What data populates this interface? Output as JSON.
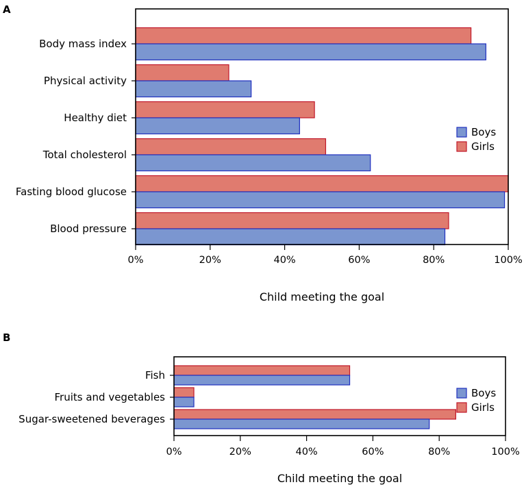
{
  "chart_data": [
    {
      "panel": "A",
      "type": "bar",
      "orientation": "horizontal",
      "categories": [
        "Body mass index",
        "Physical activity",
        "Healthy diet",
        "Total cholesterol",
        "Fasting blood glucose",
        "Blood pressure"
      ],
      "series": [
        {
          "name": "Boys",
          "color": "#7b96d0",
          "stroke": "#1f2fbf",
          "values": [
            94,
            31,
            44,
            63,
            99,
            83
          ]
        },
        {
          "name": "Girls",
          "color": "#e07b6f",
          "stroke": "#c0182a",
          "values": [
            90,
            25,
            48,
            51,
            100,
            84
          ]
        }
      ],
      "xlabel": "Child meeting the goal",
      "ylabel": "",
      "xlim": [
        0,
        100
      ],
      "ticks": [
        "0%",
        "20%",
        "40%",
        "60%",
        "80%",
        "100%"
      ],
      "legend": "right",
      "grid": false
    },
    {
      "panel": "B",
      "type": "bar",
      "orientation": "horizontal",
      "categories": [
        "Fish",
        "Fruits and vegetables",
        "Sugar-sweetened beverages"
      ],
      "series": [
        {
          "name": "Boys",
          "color": "#7b96d0",
          "stroke": "#1f2fbf",
          "values": [
            53,
            6,
            77
          ]
        },
        {
          "name": "Girls",
          "color": "#e07b6f",
          "stroke": "#c0182a",
          "values": [
            53,
            6,
            85
          ]
        }
      ],
      "xlabel": "Child meeting the goal",
      "ylabel": "",
      "xlim": [
        0,
        100
      ],
      "ticks": [
        "0%",
        "20%",
        "40%",
        "60%",
        "80%",
        "100%"
      ],
      "legend": "right",
      "grid": false
    }
  ]
}
